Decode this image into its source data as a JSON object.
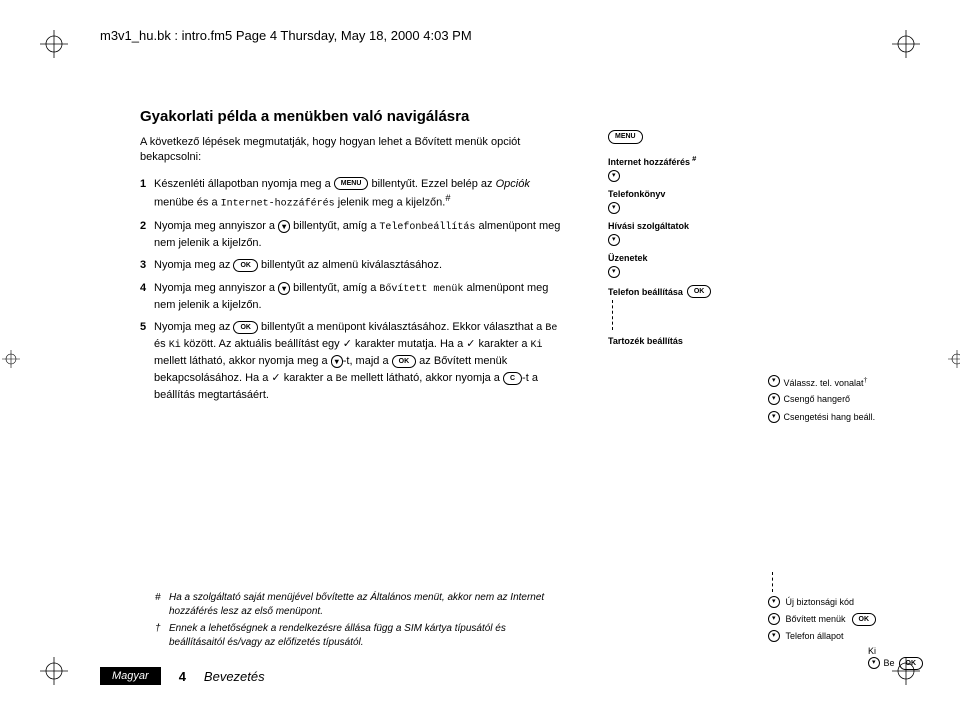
{
  "header": "m3v1_hu.bk : intro.fm5  Page 4  Thursday, May 18, 2000  4:03 PM",
  "title": "Gyakorlati példa a menükben való navigálásra",
  "intro": "A következő lépések megmutatják, hogy hogyan lehet a Bővített menük opciót bekapcsolni:",
  "steps": [
    {
      "num": "1",
      "parts": [
        "Készenléti állapotban nyomja meg a ",
        {
          "key": "MENU"
        },
        " billentyűt. Ezzel belép az ",
        {
          "i": true,
          "t": "Opciók"
        },
        " menübe és a ",
        {
          "mono": true,
          "t": "Internet-hozzáférés"
        },
        " jelenik meg a kijelzőn.",
        {
          "sup": "#"
        }
      ]
    },
    {
      "num": "2",
      "parts": [
        "Nyomja meg annyiszor a ",
        {
          "key": "▾"
        },
        " billentyűt, amíg a ",
        {
          "mono": true,
          "t": "Telefonbeállítás"
        },
        " almenüpont meg nem jelenik a kijelzőn."
      ]
    },
    {
      "num": "3",
      "parts": [
        "Nyomja meg az ",
        {
          "key": "OK"
        },
        " billentyűt az almenü kiválasztásához."
      ]
    },
    {
      "num": "4",
      "parts": [
        "Nyomja meg annyiszor a ",
        {
          "key": "▾"
        },
        " billentyűt, amíg a ",
        {
          "mono": true,
          "t": "Bővített menük"
        },
        " almenüpont meg nem jelenik a kijelzőn."
      ]
    },
    {
      "num": "5",
      "parts": [
        "Nyomja meg az ",
        {
          "key": "OK"
        },
        " billentyűt a menüpont kiválasztásához. Ekkor választhat a ",
        {
          "mono": true,
          "t": "Be"
        },
        " és ",
        {
          "mono": true,
          "t": "Ki"
        },
        " között. Az aktuális beállítást egy ",
        {
          "check": true,
          "t": "✓"
        },
        " karakter mutatja. Ha a ",
        {
          "check": true,
          "t": "✓"
        },
        " karakter a ",
        {
          "mono": true,
          "t": "Ki"
        },
        " mellett látható, akkor nyomja meg a ",
        {
          "key": "▾"
        },
        "-t, majd a ",
        {
          "key": "OK"
        },
        " az Bővített menük bekapcsolásához. Ha a ",
        {
          "check": true,
          "t": "✓"
        },
        " karakter a ",
        {
          "mono": true,
          "t": "Be"
        },
        " mellett látható, akkor nyomja a ",
        {
          "key": "C"
        },
        "-t a beállítás megtartásáért."
      ]
    }
  ],
  "diagram": {
    "menu_key": "MENU",
    "items": [
      {
        "label": "Internet hozzáférés",
        "sup": "#"
      },
      {
        "label": "Telefonkönyv"
      },
      {
        "label": "Hívási szolgáltatok"
      },
      {
        "label": "Üzenetek"
      },
      {
        "label": "Telefon beállítása",
        "ok": true
      },
      {
        "label": "Tartozék beállítás",
        "gap": true
      }
    ],
    "sub": [
      {
        "label": "Válassz. tel. vonalat",
        "sup": "†"
      },
      {
        "label": "Csengő hangerő"
      },
      {
        "label": "Csengetési hang beáll."
      },
      {
        "label": "Új biztonsági kód",
        "gap": true
      },
      {
        "label": "Bővített menük",
        "ok": true
      },
      {
        "label": "Telefon állapot"
      }
    ],
    "end": {
      "ki": "Ki",
      "be": "Be"
    }
  },
  "footnotes": [
    {
      "mark": "#",
      "text": "Ha a szolgáltató saját menüjével bővítette az Általános menüt, akkor nem az Internet hozzáférés lesz az első menüpont."
    },
    {
      "mark": "†",
      "text": "Ennek a lehetőségnek a rendelkezésre állása függ a SIM kártya típusától és beállításaitól és/vagy az előfizetés típusától."
    }
  ],
  "footer": {
    "lang": "Magyar",
    "page": "4",
    "section": "Bevezetés"
  }
}
